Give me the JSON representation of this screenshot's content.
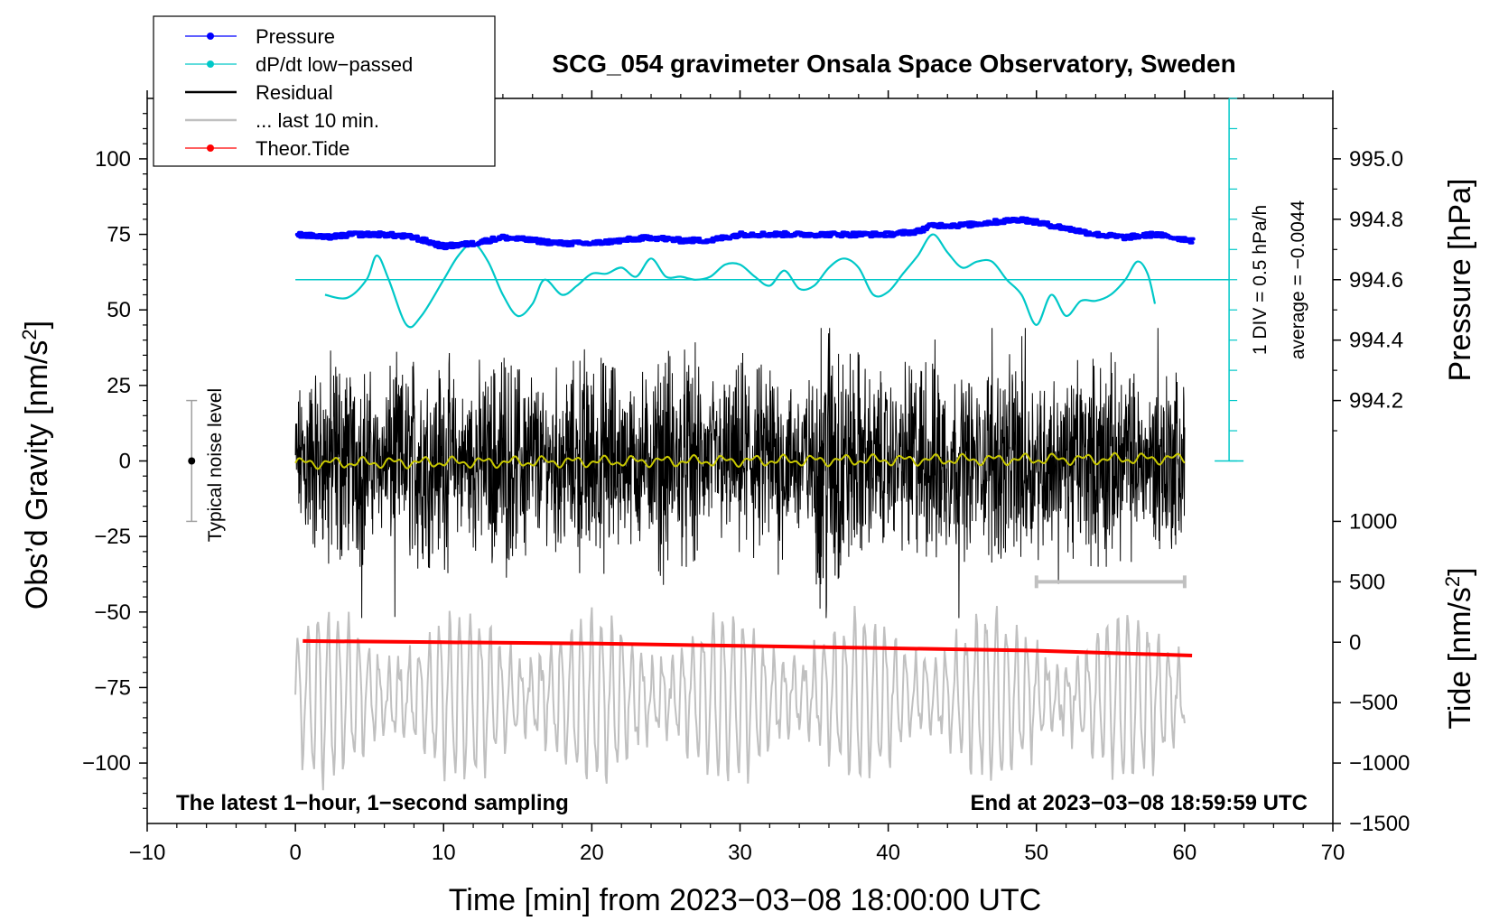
{
  "chart_data": {
    "type": "line",
    "title": "SCG_054 gravimeter Onsala Space Observatory, Sweden",
    "xlabel": "Time [min] from 2023−03−08 18:00:00 UTC",
    "xlim": [
      -10,
      70
    ],
    "x_ticks": [
      -10,
      0,
      10,
      20,
      30,
      40,
      50,
      60,
      70
    ],
    "x_tick_labels": [
      "−10",
      "0",
      "10",
      "20",
      "30",
      "40",
      "50",
      "60",
      "70"
    ],
    "y_left": {
      "label_main": "Obs’d Gravity [nm/s",
      "label_sup": "2",
      "label_end": "]",
      "ylim": [
        -120,
        120
      ],
      "ticks": [
        -100,
        -75,
        -50,
        -25,
        0,
        25,
        50,
        75,
        100
      ],
      "tick_labels": [
        "−100",
        "−75",
        "−50",
        "−25",
        "0",
        "25",
        "50",
        "75",
        "100"
      ]
    },
    "y_right_pressure": {
      "label": "Pressure [hPa]",
      "range_hpa": [
        994.0,
        995.2
      ],
      "ticks": [
        994.2,
        994.4,
        994.6,
        994.8,
        995.0
      ],
      "tick_labels": [
        "994.2",
        "994.4",
        "994.6",
        "994.8",
        "995.0"
      ]
    },
    "y_right_tide": {
      "label_main": "Tide [nm/s",
      "label_sup": "2",
      "label_end": "]",
      "range": [
        -1500,
        1000
      ],
      "ticks": [
        -1500,
        -1000,
        -500,
        0,
        500,
        1000
      ],
      "tick_labels": [
        "−1500",
        "−1000",
        "−500",
        "0",
        "500",
        "1000"
      ]
    },
    "legend": {
      "location": "top-left",
      "entries": [
        {
          "label": "Pressure",
          "color": "#0000ff",
          "style": "line-dot"
        },
        {
          "label": "dP/dt low−passed",
          "color": "#00c8c8",
          "style": "line-dot"
        },
        {
          "label": "Residual",
          "color": "#000000",
          "style": "line"
        },
        {
          "label": "... last 10 min.",
          "color": "#c0c0c0",
          "style": "line"
        },
        {
          "label": "Theor.Tide",
          "color": "#ff0000",
          "style": "line-dot"
        }
      ]
    },
    "dpdt_scale": {
      "label": "1 DIV = 0.5 hPa/h",
      "average_label": "average = −0.0044",
      "axis_x_min": 63,
      "zero_level": 60
    },
    "noise_indicator": {
      "label": "Typical noise level",
      "x_min": -7,
      "center": 0,
      "range": [
        -20,
        20
      ]
    },
    "last10_bar": {
      "from_min": 50,
      "to_min": 60,
      "level": -40
    },
    "footer_left": "The latest 1−hour, 1−second sampling",
    "footer_right": "End at 2023−03−08 18:59:59 UTC",
    "series": [
      {
        "name": "Pressure",
        "axis": "pressure_hpa",
        "x": [
          0.2,
          2,
          4,
          6,
          8,
          10,
          12,
          14,
          16,
          18,
          20,
          22,
          24,
          26,
          28,
          30,
          32,
          34,
          36,
          38,
          40,
          42,
          43,
          45,
          47,
          49,
          50,
          52,
          54,
          56,
          58,
          60.5
        ],
        "values": [
          994.75,
          994.74,
          994.75,
          994.75,
          994.74,
          994.71,
          994.72,
          994.74,
          994.73,
          994.72,
          994.72,
          994.73,
          994.74,
          994.73,
          994.73,
          994.75,
          994.75,
          994.75,
          994.75,
          994.75,
          994.75,
          994.76,
          994.78,
          994.78,
          994.79,
          994.8,
          994.79,
          994.77,
          994.75,
          994.74,
          994.75,
          994.73
        ]
      },
      {
        "name": "dP/dt low-passed",
        "axis": "left",
        "x": [
          2,
          3.5,
          4.8,
          5.5,
          6.3,
          7.5,
          8.5,
          10,
          11,
          12,
          13,
          14,
          15,
          16,
          16.8,
          18,
          19,
          20,
          21,
          22,
          23,
          24,
          25,
          26,
          27,
          28,
          29,
          30,
          31,
          32,
          33,
          34,
          35,
          36,
          37,
          38,
          39,
          40,
          41,
          42,
          43,
          44,
          45,
          46,
          47,
          48,
          49,
          50,
          51,
          52,
          53,
          54,
          55,
          56,
          56.8,
          57.5,
          58
        ],
        "values": [
          55,
          54,
          60,
          68,
          60,
          45,
          48,
          60,
          68,
          72,
          66,
          55,
          48,
          52,
          60,
          55,
          58,
          62,
          62,
          64,
          61,
          67,
          61,
          61,
          60,
          61,
          65,
          65,
          61,
          58,
          63,
          57,
          58,
          64,
          67,
          64,
          55,
          56,
          62,
          68,
          75,
          69,
          64,
          66,
          66,
          60,
          55,
          45,
          55,
          48,
          53,
          53,
          55,
          60,
          66,
          62,
          52
        ]
      },
      {
        "name": "Residual",
        "axis": "left",
        "note": "1-second noise envelope approx. ±40 nm/s², min near −53 at 36 min, max near +44 at 36 min"
      },
      {
        "name": "... last 10 min.",
        "axis": "left",
        "note": "expanded view of last 10 minutes, oscillating between about −105 and −50 nm/s²"
      },
      {
        "name": "Theor.Tide",
        "axis": "tide",
        "x": [
          0.5,
          10,
          20,
          30,
          40,
          50,
          60.5
        ],
        "values": [
          10,
          0,
          -10,
          -30,
          -50,
          -70,
          -110
        ]
      }
    ]
  }
}
